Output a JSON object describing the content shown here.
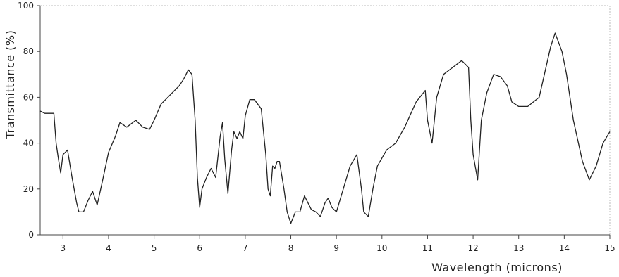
{
  "chart_data": {
    "type": "line",
    "title": "",
    "xlabel": "Wavelength (microns)",
    "ylabel": "Transmittance (%)",
    "xlim": [
      2.5,
      15
    ],
    "ylim": [
      0,
      100
    ],
    "xticks": [
      3,
      4,
      5,
      6,
      7,
      8,
      9,
      10,
      11,
      12,
      13,
      14,
      15
    ],
    "yticks": [
      0,
      20,
      40,
      60,
      80,
      100
    ],
    "grid": false,
    "series": [
      {
        "color": "#222222",
        "x": [
          2.5,
          2.6,
          2.8,
          2.85,
          2.9,
          2.95,
          3.0,
          3.1,
          3.2,
          3.3,
          3.35,
          3.45,
          3.55,
          3.65,
          3.75,
          3.85,
          4.0,
          4.15,
          4.25,
          4.4,
          4.6,
          4.75,
          4.9,
          5.0,
          5.15,
          5.3,
          5.45,
          5.55,
          5.65,
          5.75,
          5.83,
          5.9,
          5.95,
          6.0,
          6.05,
          6.15,
          6.25,
          6.35,
          6.45,
          6.5,
          6.55,
          6.62,
          6.7,
          6.75,
          6.82,
          6.88,
          6.95,
          7.0,
          7.1,
          7.2,
          7.35,
          7.45,
          7.5,
          7.55,
          7.6,
          7.65,
          7.7,
          7.75,
          7.85,
          7.92,
          8.0,
          8.1,
          8.2,
          8.3,
          8.45,
          8.55,
          8.65,
          8.75,
          8.82,
          8.9,
          9.0,
          9.15,
          9.3,
          9.45,
          9.55,
          9.6,
          9.7,
          9.8,
          9.9,
          10.1,
          10.3,
          10.5,
          10.75,
          10.95,
          11.0,
          11.1,
          11.2,
          11.35,
          11.55,
          11.75,
          11.9,
          11.95,
          12.0,
          12.1,
          12.18,
          12.3,
          12.45,
          12.6,
          12.75,
          12.85,
          13.0,
          13.2,
          13.45,
          13.7,
          13.8,
          13.95,
          14.05,
          14.2,
          14.4,
          14.55,
          14.7,
          14.85,
          15.0
        ],
        "y": [
          54,
          53,
          53,
          40,
          33,
          27,
          35,
          37,
          25,
          14,
          10,
          10,
          15,
          19,
          13,
          22,
          36,
          43,
          49,
          47,
          50,
          47,
          46,
          50,
          57,
          60,
          63,
          65,
          68,
          72,
          70,
          50,
          25,
          12,
          20,
          25,
          29,
          25,
          43,
          49,
          33,
          18,
          37,
          45,
          42,
          45,
          42,
          52,
          59,
          59,
          55,
          35,
          20,
          17,
          30,
          29,
          32,
          32,
          20,
          10,
          5,
          10,
          10,
          17,
          11,
          10,
          8,
          14,
          16,
          12,
          10,
          20,
          30,
          35,
          20,
          10,
          8,
          20,
          30,
          37,
          40,
          47,
          58,
          63,
          50,
          40,
          60,
          70,
          73,
          76,
          73,
          50,
          35,
          24,
          50,
          62,
          70,
          69,
          65,
          58,
          56,
          56,
          60,
          82,
          88,
          80,
          70,
          50,
          32,
          24,
          30,
          40,
          45
        ]
      }
    ]
  }
}
